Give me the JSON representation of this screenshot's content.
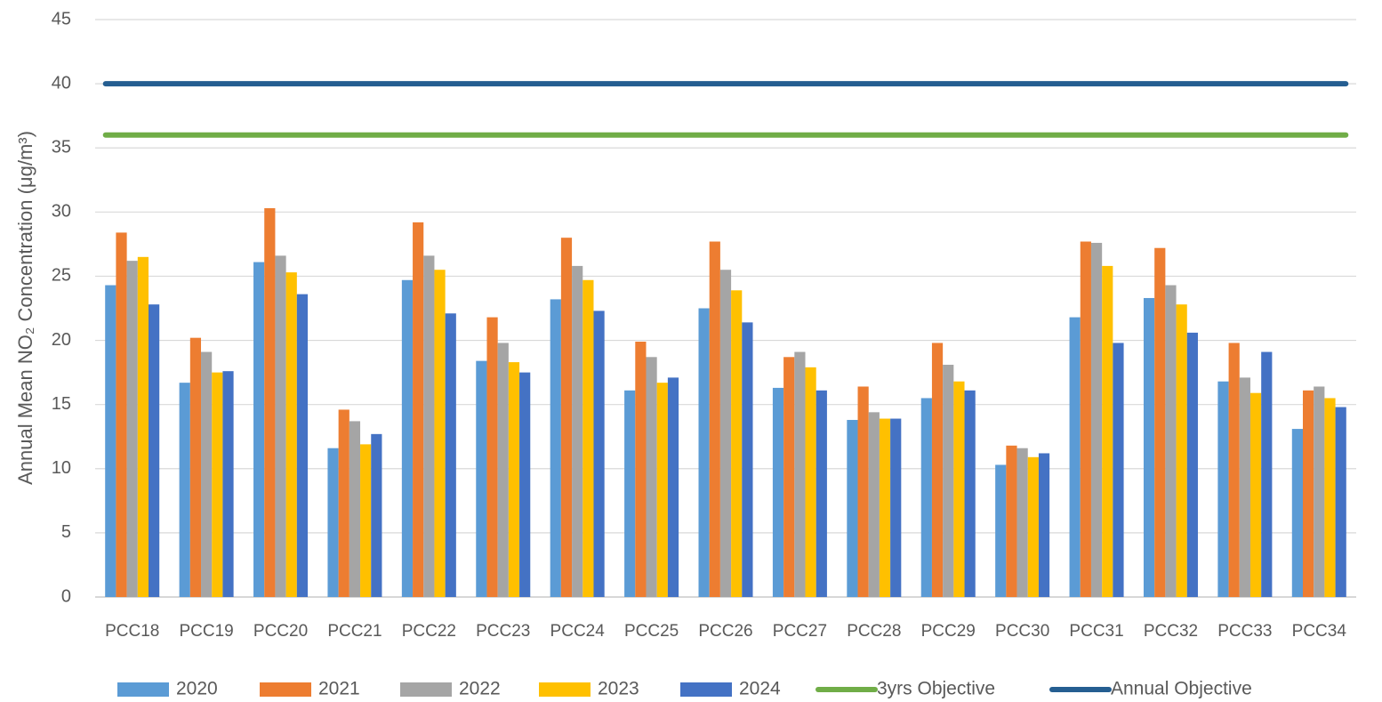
{
  "chart_data": {
    "type": "bar",
    "y_label": "Annual Mean NO₂ Concentration (μg/m³)",
    "categories": [
      "PCC18",
      "PCC19",
      "PCC20",
      "PCC21",
      "PCC22",
      "PCC23",
      "PCC24",
      "PCC25",
      "PCC26",
      "PCC27",
      "PCC28",
      "PCC29",
      "PCC30",
      "PCC31",
      "PCC32",
      "PCC33",
      "PCC34"
    ],
    "series": [
      {
        "name": "2020",
        "color": "#5b9bd5",
        "values": [
          24.3,
          16.7,
          26.1,
          11.6,
          24.7,
          18.4,
          23.2,
          16.1,
          22.5,
          16.3,
          13.8,
          15.5,
          10.3,
          21.8,
          23.3,
          16.8,
          13.1
        ]
      },
      {
        "name": "2021",
        "color": "#ed7d31",
        "values": [
          28.4,
          20.2,
          30.3,
          14.6,
          29.2,
          21.8,
          28.0,
          19.9,
          27.7,
          18.7,
          16.4,
          19.8,
          11.8,
          27.7,
          27.2,
          19.8,
          16.1
        ]
      },
      {
        "name": "2022",
        "color": "#a5a5a5",
        "values": [
          26.2,
          19.1,
          26.6,
          13.7,
          26.6,
          19.8,
          25.8,
          18.7,
          25.5,
          19.1,
          14.4,
          18.1,
          11.6,
          27.6,
          24.3,
          17.1,
          16.4
        ]
      },
      {
        "name": "2023",
        "color": "#ffc000",
        "values": [
          26.5,
          17.5,
          25.3,
          11.9,
          25.5,
          18.3,
          24.7,
          16.7,
          23.9,
          17.9,
          13.9,
          16.8,
          10.9,
          25.8,
          22.8,
          15.9,
          15.5
        ]
      },
      {
        "name": "2024",
        "color": "#4472c4",
        "values": [
          22.8,
          17.6,
          23.6,
          12.7,
          22.1,
          17.5,
          22.3,
          17.1,
          21.4,
          16.1,
          13.9,
          16.1,
          11.2,
          19.8,
          20.6,
          19.1,
          14.8
        ]
      },
      {
        "name": "3yrs Objective",
        "type": "line",
        "color": "#70ad47",
        "values": [
          36,
          36,
          36,
          36,
          36,
          36,
          36,
          36,
          36,
          36,
          36,
          36,
          36,
          36,
          36,
          36,
          36
        ]
      },
      {
        "name": "Annual Objective",
        "type": "line",
        "color": "#255e91",
        "values": [
          40,
          40,
          40,
          40,
          40,
          40,
          40,
          40,
          40,
          40,
          40,
          40,
          40,
          40,
          40,
          40,
          40
        ]
      }
    ],
    "ylim": [
      0,
      45
    ],
    "yticks": [
      0,
      5,
      10,
      15,
      20,
      25,
      30,
      35,
      40,
      45
    ],
    "grid": true,
    "legend": "bottom"
  }
}
